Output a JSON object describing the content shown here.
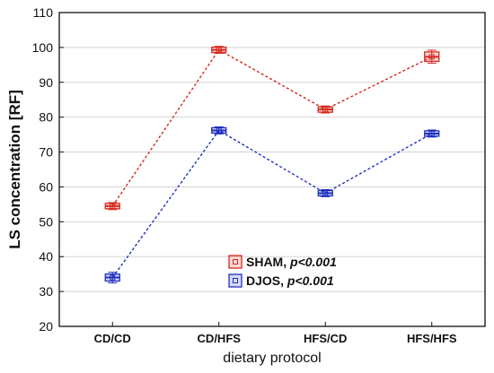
{
  "chart_data": {
    "type": "line",
    "xlabel": "dietary protocol",
    "ylabel": "LS concentration [RF]",
    "categories": [
      "CD/CD",
      "CD/HFS",
      "HFS/CD",
      "HFS/HFS"
    ],
    "ylim": [
      20,
      110
    ],
    "yticks": [
      20,
      30,
      40,
      50,
      60,
      70,
      80,
      90,
      100,
      110
    ],
    "grid": true,
    "legend_placement": "bottom-center",
    "series": [
      {
        "name": "SHAM",
        "stat": "p<0.001",
        "color": "#d62a1e",
        "values": [
          54.5,
          99.3,
          82.2,
          97.3
        ],
        "error_low": [
          54.0,
          98.8,
          81.7,
          96.0
        ],
        "error_high": [
          55.0,
          99.8,
          82.7,
          98.7
        ]
      },
      {
        "name": "DJOS",
        "stat": "p<0.001",
        "color": "#1f2fbf",
        "values": [
          34.0,
          76.2,
          58.2,
          75.3
        ],
        "error_low": [
          33.0,
          75.7,
          57.7,
          74.8
        ],
        "error_high": [
          35.0,
          76.7,
          58.7,
          75.8
        ]
      }
    ]
  }
}
